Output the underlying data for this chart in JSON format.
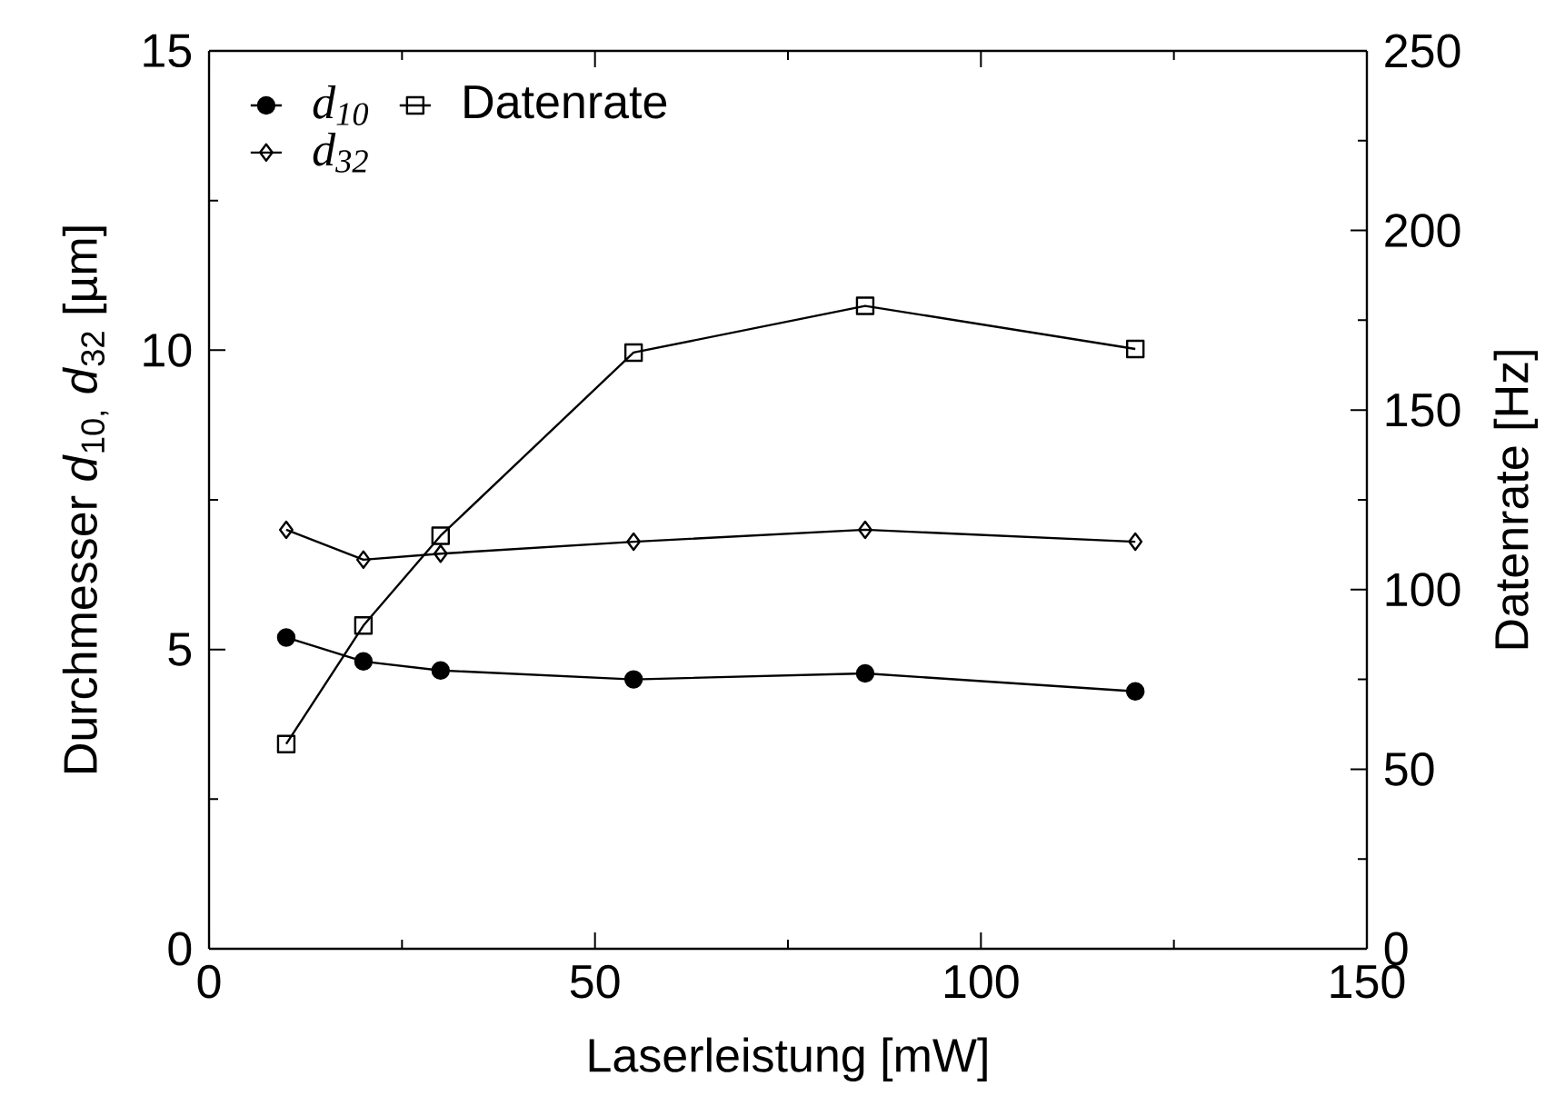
{
  "chart_data": {
    "type": "line",
    "xlabel": "Laserleistung [mW]",
    "ylabel": "Durchmesser *d*$_{10,}$ *d*$_{32}$ [µm]",
    "y2label": "Datenrate [Hz]",
    "x": [
      10,
      20,
      30,
      55,
      85,
      120
    ],
    "series": [
      {
        "name": "*d*$_{10}$",
        "color": "#000000",
        "marker": "circle",
        "values": [
          5.2,
          4.8,
          4.65,
          4.5,
          4.6,
          4.3
        ]
      },
      {
        "name": "Datenrate",
        "color": "#000000",
        "marker": "square",
        "axis": "y2",
        "values": [
          57,
          90,
          115,
          166,
          179,
          167
        ]
      },
      {
        "name": "*d*$_{32}$",
        "color": "#000000",
        "marker": "diamond",
        "values": [
          7.0,
          6.5,
          6.6,
          6.8,
          7.0,
          6.8
        ]
      }
    ],
    "xlim": [
      0,
      150
    ],
    "xticks": [
      0,
      50,
      100,
      150
    ],
    "ylim": [
      0,
      15
    ],
    "yticks": [
      0,
      5,
      10,
      15
    ],
    "y2lim": [
      0,
      250
    ],
    "y2ticks": [
      0,
      50,
      100,
      150,
      200,
      250
    ],
    "legend": "top left",
    "line_style": "solid",
    "grid": false
  }
}
